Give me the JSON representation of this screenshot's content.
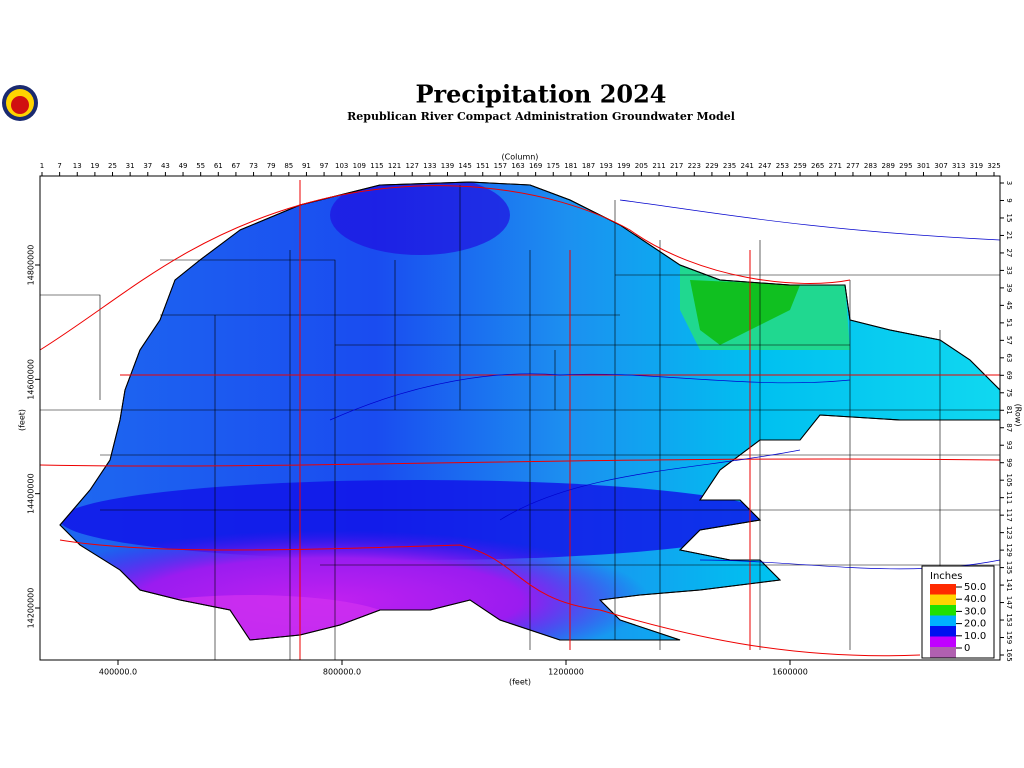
{
  "title": "Precipitation  2024",
  "subtitle": "Republican  River  Compact  Administration  Groundwater  Model",
  "column_label": "(Column)",
  "row_label": "(Row)",
  "x_label": "(feet)",
  "y_label": "(feet)",
  "column_ticks": [
    1,
    7,
    13,
    19,
    25,
    31,
    37,
    43,
    49,
    55,
    61,
    67,
    73,
    79,
    85,
    91,
    97,
    103,
    109,
    115,
    121,
    127,
    133,
    139,
    145,
    151,
    157,
    163,
    169,
    175,
    181,
    187,
    193,
    199,
    205,
    211,
    217,
    223,
    229,
    235,
    241,
    247,
    253,
    259,
    265,
    271,
    277,
    283,
    289,
    295,
    301,
    307,
    313,
    319,
    325
  ],
  "row_ticks": [
    3,
    9,
    15,
    21,
    27,
    33,
    39,
    45,
    51,
    57,
    63,
    69,
    75,
    81,
    87,
    93,
    99,
    105,
    111,
    117,
    123,
    129,
    135,
    141,
    147,
    153,
    159,
    165
  ],
  "x_ticks": [
    {
      "value": 400000,
      "label": "400000.0"
    },
    {
      "value": 800000,
      "label": "800000.0"
    },
    1200000,
    1600000
  ],
  "y_ticks": [
    14800000,
    14600000,
    14400000,
    14200000
  ],
  "legend": {
    "title": "Inches",
    "ticks": [
      {
        "value": 50,
        "label": "50.0"
      },
      {
        "value": 40,
        "label": "40.0"
      },
      {
        "value": 30,
        "label": "30.0"
      },
      {
        "value": 20,
        "label": "20.0"
      },
      {
        "value": 10,
        "label": "10.0"
      },
      0
    ],
    "colors": [
      "#ff2a00",
      "#ffd400",
      "#20e000",
      "#00b0ff",
      "#0010f0",
      "#c000ff",
      "#b060b0"
    ]
  }
}
